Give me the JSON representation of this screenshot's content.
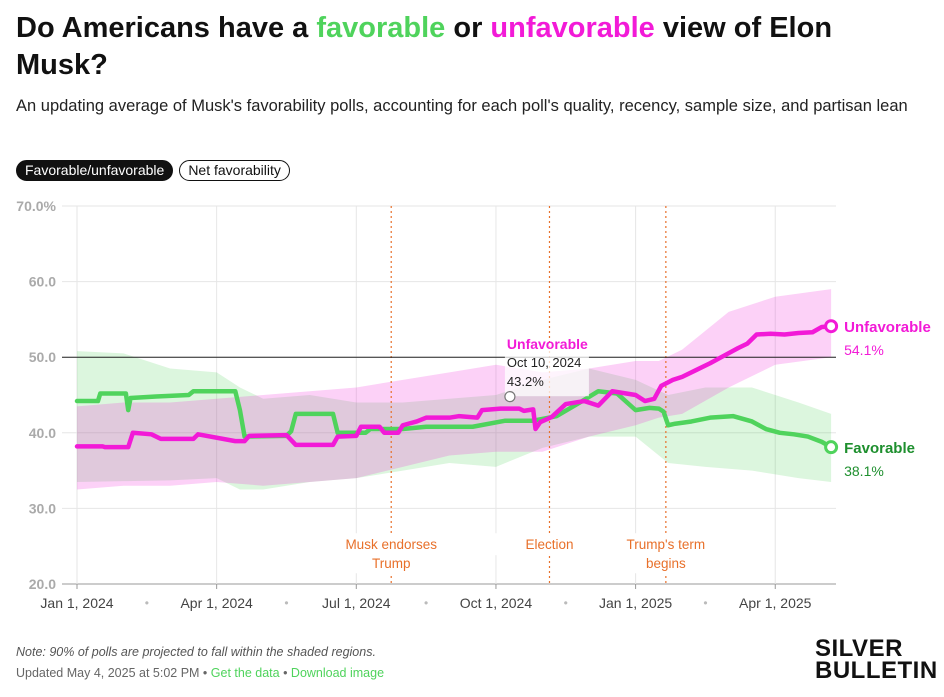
{
  "title": {
    "part1": "Do Americans have a ",
    "favorable": "favorable",
    "part2": " or ",
    "unfavorable": "unfavorable",
    "part3": " view of Elon Musk?"
  },
  "subtitle": "An updating average of Musk's favorability polls, accounting for each poll's quality, recency, sample size, and partisan lean",
  "toggles": {
    "active": "Favorable/unfavorable",
    "inactive": "Net favorability"
  },
  "colors": {
    "favorable": "#4fd35c",
    "unfavorable": "#f21ad7",
    "favorable_label": "#1e8f2e",
    "annotation": "#e8702a"
  },
  "chart_data": {
    "type": "line",
    "ylim": [
      20,
      70
    ],
    "yticks": [
      "70.0%",
      "60.0",
      "50.0",
      "40.0",
      "30.0",
      "20.0"
    ],
    "ytick_values": [
      70,
      60,
      50,
      40,
      30,
      20
    ],
    "reference_line": 50,
    "xlim": [
      0,
      16.3
    ],
    "xticks": [
      {
        "label": "Jan 1, 2024",
        "m": 0
      },
      {
        "label": "Apr 1, 2024",
        "m": 3
      },
      {
        "label": "Jul 1, 2024",
        "m": 6
      },
      {
        "label": "Oct 1, 2024",
        "m": 9
      },
      {
        "label": "Jan 1, 2025",
        "m": 12
      },
      {
        "label": "Apr 1, 2025",
        "m": 15
      }
    ],
    "events": [
      {
        "label1": "Musk endorses",
        "label2": "Trump",
        "m": 6.75
      },
      {
        "label1": "Election",
        "label2": "",
        "m": 10.15
      },
      {
        "label1": "Trump's term",
        "label2": "begins",
        "m": 12.65
      }
    ],
    "series": [
      {
        "name": "Favorable",
        "end_value": "38.1%",
        "points": [
          [
            0,
            44.2
          ],
          [
            0.45,
            44.2
          ],
          [
            0.5,
            45.2
          ],
          [
            1.05,
            45.2
          ],
          [
            1.1,
            43
          ],
          [
            1.15,
            44.6
          ],
          [
            1.7,
            44.8
          ],
          [
            2.4,
            45
          ],
          [
            2.5,
            45.5
          ],
          [
            3.4,
            45.5
          ],
          [
            3.5,
            43
          ],
          [
            3.6,
            39.5
          ],
          [
            4.5,
            39.6
          ],
          [
            4.6,
            40.2
          ],
          [
            4.7,
            42.5
          ],
          [
            5.5,
            42.5
          ],
          [
            5.6,
            40
          ],
          [
            6.2,
            40
          ],
          [
            6.3,
            40.5
          ],
          [
            7,
            40.5
          ],
          [
            7.5,
            40.8
          ],
          [
            8.5,
            40.8
          ],
          [
            9.2,
            41.6
          ],
          [
            9.8,
            41.6
          ],
          [
            10.3,
            42.2
          ],
          [
            10.8,
            44
          ],
          [
            11.2,
            45.5
          ],
          [
            11.6,
            45.2
          ],
          [
            12.0,
            43
          ],
          [
            12.3,
            43.3
          ],
          [
            12.5,
            43.2
          ],
          [
            12.6,
            42.8
          ],
          [
            12.7,
            41
          ],
          [
            12.85,
            41.2
          ],
          [
            13.2,
            41.5
          ],
          [
            13.6,
            42
          ],
          [
            14.1,
            42.2
          ],
          [
            14.5,
            41.5
          ],
          [
            14.8,
            40.5
          ],
          [
            15.1,
            40
          ],
          [
            15.4,
            39.8
          ],
          [
            15.7,
            39.5
          ],
          [
            16.0,
            38.8
          ],
          [
            16.2,
            38.1
          ]
        ],
        "band": [
          [
            0,
            50.8,
            33.5
          ],
          [
            1,
            50.5,
            33.6
          ],
          [
            2,
            48.5,
            33.7
          ],
          [
            3,
            48,
            34
          ],
          [
            3.5,
            46,
            32.5
          ],
          [
            4,
            44.5,
            32.5
          ],
          [
            5,
            45,
            33.5
          ],
          [
            6,
            44,
            34
          ],
          [
            7,
            44,
            35
          ],
          [
            8,
            44.5,
            36
          ],
          [
            9,
            45,
            35.5
          ],
          [
            10,
            47,
            38
          ],
          [
            11,
            48.5,
            39.5
          ],
          [
            12,
            47,
            39.5
          ],
          [
            12.7,
            45,
            36
          ],
          [
            13.5,
            46,
            35.5
          ],
          [
            14.5,
            46,
            35
          ],
          [
            15.5,
            44,
            34
          ],
          [
            16.2,
            42.5,
            33.5
          ]
        ]
      },
      {
        "name": "Unfavorable",
        "end_value": "54.1%",
        "points": [
          [
            0,
            38.2
          ],
          [
            0.55,
            38.2
          ],
          [
            0.6,
            38.1
          ],
          [
            1.1,
            38.1
          ],
          [
            1.2,
            40
          ],
          [
            1.6,
            39.8
          ],
          [
            1.8,
            39.2
          ],
          [
            2.5,
            39.2
          ],
          [
            2.6,
            39.8
          ],
          [
            3.4,
            38.9
          ],
          [
            3.6,
            38.9
          ],
          [
            3.7,
            39.6
          ],
          [
            4.5,
            39.7
          ],
          [
            4.7,
            38.4
          ],
          [
            5.5,
            38.4
          ],
          [
            5.6,
            39.5
          ],
          [
            6.0,
            39.6
          ],
          [
            6.1,
            40.8
          ],
          [
            6.5,
            40.8
          ],
          [
            6.6,
            40
          ],
          [
            6.9,
            40
          ],
          [
            7,
            41
          ],
          [
            7.3,
            41.5
          ],
          [
            7.5,
            42
          ],
          [
            8.0,
            42
          ],
          [
            8.2,
            42.2
          ],
          [
            8.6,
            42
          ],
          [
            8.7,
            43
          ],
          [
            9.1,
            43.2
          ],
          [
            9.5,
            43.2
          ],
          [
            9.6,
            42.9
          ],
          [
            9.8,
            43.1
          ],
          [
            9.85,
            40.5
          ],
          [
            9.95,
            41.4
          ],
          [
            10.2,
            42.1
          ],
          [
            10.5,
            43.8
          ],
          [
            10.9,
            44.2
          ],
          [
            11.2,
            43.6
          ],
          [
            11.5,
            45.5
          ],
          [
            11.8,
            45.2
          ],
          [
            12.0,
            45
          ],
          [
            12.2,
            44.2
          ],
          [
            12.4,
            44.5
          ],
          [
            12.55,
            46.2
          ],
          [
            12.8,
            47
          ],
          [
            13.0,
            47.4
          ],
          [
            13.3,
            48.3
          ],
          [
            13.6,
            49.2
          ],
          [
            13.9,
            50.2
          ],
          [
            14.2,
            51.2
          ],
          [
            14.4,
            51.8
          ],
          [
            14.6,
            53
          ],
          [
            14.9,
            53.1
          ],
          [
            15.2,
            53
          ],
          [
            15.5,
            53.2
          ],
          [
            15.8,
            53.3
          ],
          [
            16.0,
            54
          ],
          [
            16.2,
            54.1
          ]
        ],
        "band": [
          [
            0,
            43.5,
            32.5
          ],
          [
            1,
            44,
            33
          ],
          [
            2,
            44,
            33
          ],
          [
            3,
            44.5,
            33.5
          ],
          [
            4,
            45,
            33
          ],
          [
            5,
            45.5,
            33.5
          ],
          [
            6,
            46,
            34
          ],
          [
            7,
            47,
            35.5
          ],
          [
            8,
            48,
            37
          ],
          [
            9,
            49,
            37.5
          ],
          [
            10,
            48,
            37.5
          ],
          [
            11,
            48.5,
            39.5
          ],
          [
            12,
            49.5,
            41
          ],
          [
            12.5,
            49.5,
            42
          ],
          [
            13,
            51,
            42.5
          ],
          [
            14,
            56,
            46
          ],
          [
            15,
            58,
            49
          ],
          [
            16.2,
            59,
            50
          ]
        ]
      }
    ],
    "highlight": {
      "series": "Unfavorable",
      "date": "Oct 10, 2024",
      "value": "43.2%",
      "m": 9.3
    }
  },
  "footer": {
    "note": "Note: 90% of polls are projected to fall within the shaded regions.",
    "updated": "Updated May 4, 2025 at 5:02 PM",
    "sep1": " • ",
    "get_data": "Get the data",
    "sep2": " • ",
    "download": "Download image"
  },
  "logo": {
    "line1": "SILVER",
    "line2": "BULLETIN"
  }
}
